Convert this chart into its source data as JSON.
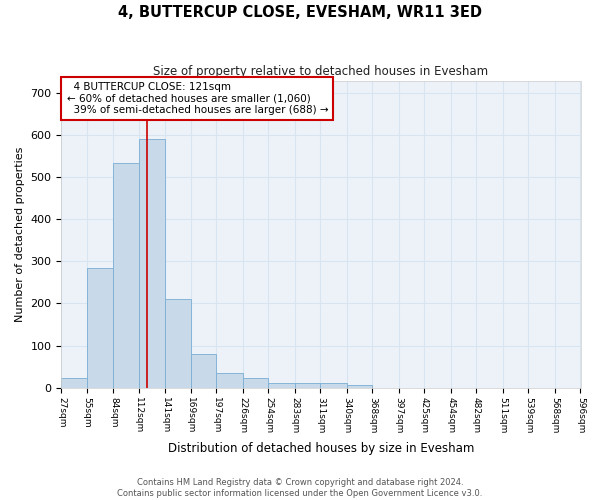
{
  "title": "4, BUTTERCUP CLOSE, EVESHAM, WR11 3ED",
  "subtitle": "Size of property relative to detached houses in Evesham",
  "xlabel": "Distribution of detached houses by size in Evesham",
  "ylabel": "Number of detached properties",
  "property_label": "4 BUTTERCUP CLOSE: 121sqm",
  "pct_smaller": 60,
  "n_smaller": 1060,
  "pct_larger_semi": 39,
  "n_larger_semi": 688,
  "bin_edges": [
    27,
    55,
    84,
    112,
    141,
    169,
    197,
    226,
    254,
    283,
    311,
    340,
    368,
    397,
    425,
    454,
    482,
    511,
    539,
    568,
    596
  ],
  "bar_heights": [
    22,
    285,
    535,
    590,
    210,
    80,
    35,
    22,
    10,
    10,
    10,
    7,
    0,
    0,
    0,
    0,
    0,
    0,
    0,
    0
  ],
  "bar_color": "#c8daea",
  "bar_edge_color": "#7aaed4",
  "redline_x": 121,
  "redline_color": "#cc0000",
  "annotation_facecolor": "#ffffff",
  "annotation_edgecolor": "#cc0000",
  "grid_color": "#d8e4f0",
  "fig_facecolor": "#ffffff",
  "ax_facecolor": "#edf2f9",
  "footer_line1": "Contains HM Land Registry data © Crown copyright and database right 2024.",
  "footer_line2": "Contains public sector information licensed under the Open Government Licence v3.0.",
  "ylim": [
    0,
    730
  ],
  "yticks": [
    0,
    100,
    200,
    300,
    400,
    500,
    600,
    700
  ]
}
